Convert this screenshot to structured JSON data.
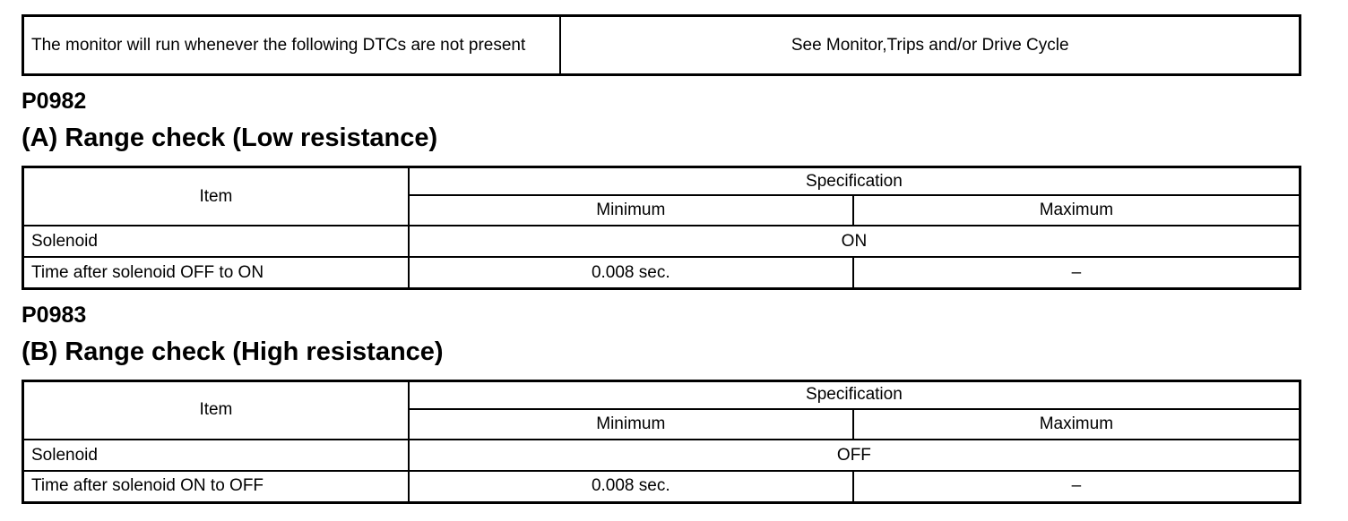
{
  "monitor_row": {
    "condition": "The monitor will run whenever the following DTCs are not present",
    "reference": "See Monitor,Trips and/or Drive Cycle"
  },
  "sections": [
    {
      "code": "P0982",
      "title": "(A) Range check (Low resistance)",
      "table": {
        "headers": {
          "item": "Item",
          "specification": "Specification",
          "minimum": "Minimum",
          "maximum": "Maximum"
        },
        "rows": [
          {
            "item": "Solenoid",
            "value": "ON"
          },
          {
            "item": "Time after solenoid OFF to ON",
            "minimum": "0.008 sec.",
            "maximum": "–"
          }
        ]
      }
    },
    {
      "code": "P0983",
      "title": "(B) Range check (High resistance)",
      "table": {
        "headers": {
          "item": "Item",
          "specification": "Specification",
          "minimum": "Minimum",
          "maximum": "Maximum"
        },
        "rows": [
          {
            "item": "Solenoid",
            "value": "OFF"
          },
          {
            "item": "Time after solenoid ON to OFF",
            "minimum": "0.008 sec.",
            "maximum": "–"
          }
        ]
      }
    }
  ]
}
